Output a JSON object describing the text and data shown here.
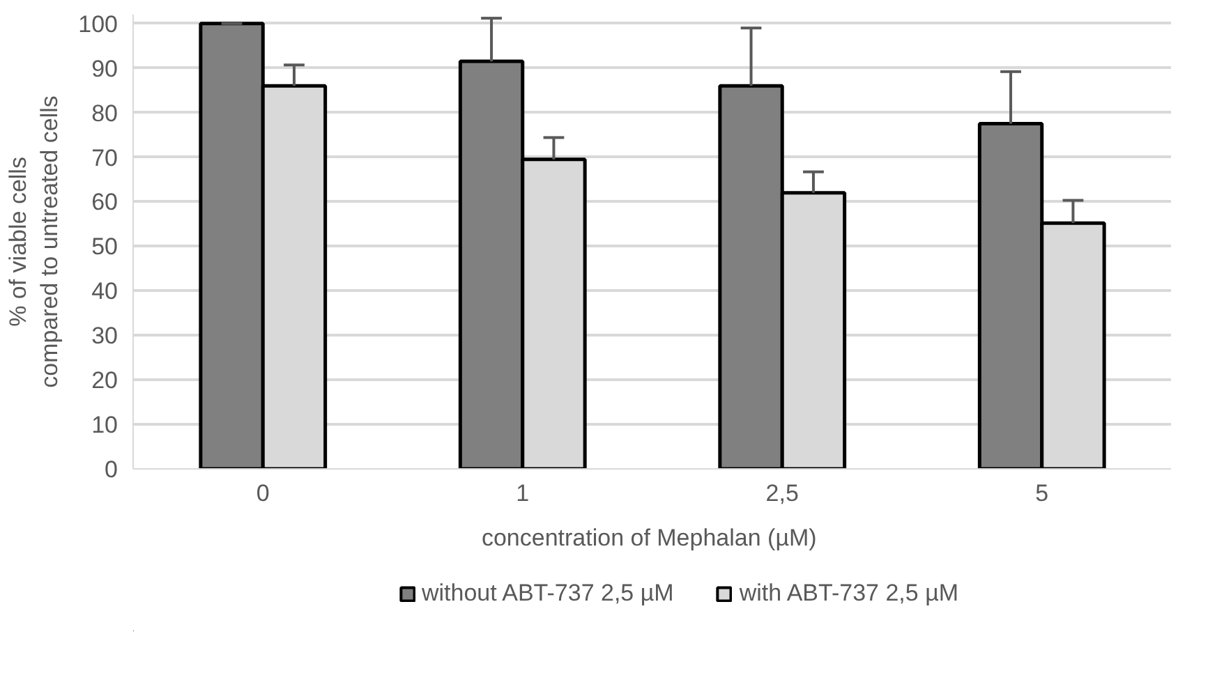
{
  "chart_data": {
    "type": "bar",
    "xlabel": "concentration  of Mephalan (µM)",
    "ylabel": "% of viable cells compared to untreated cells",
    "categories": [
      "0",
      "1",
      "2,5",
      "5"
    ],
    "series": [
      {
        "name": "without ABT-737 2,5 µM",
        "color": "#808080",
        "values": [
          100,
          91.5,
          86,
          77.5
        ],
        "errors": [
          [
            100,
            100
          ],
          [
            91.5,
            101.2
          ],
          [
            86,
            99
          ],
          [
            77.5,
            89.2
          ]
        ]
      },
      {
        "name": "with ABT-737 2,5 µM",
        "color": "#d9d9d9",
        "values": [
          86,
          69.5,
          62,
          55.2
        ],
        "errors": [
          [
            86,
            90.7
          ],
          [
            69.5,
            74.4
          ],
          [
            62,
            66.7
          ],
          [
            55.2,
            60.3
          ]
        ]
      }
    ],
    "ylim": [
      0,
      102
    ],
    "yticks": [
      0,
      10,
      20,
      30,
      40,
      50,
      60,
      70,
      80,
      90,
      100
    ],
    "grid": "y",
    "legend": "bottom"
  }
}
